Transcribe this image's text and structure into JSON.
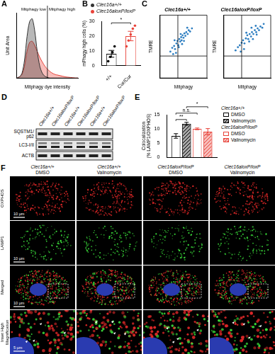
{
  "chart_data": [
    {
      "panel": "A",
      "type": "line",
      "x_label": "Mitphagy dye intensity",
      "y_label": "Unit Area",
      "x": [
        0,
        0.25,
        0.5,
        0.75,
        1,
        1.25,
        1.5,
        1.75,
        2,
        2.25,
        2.5,
        2.75,
        3,
        3.25,
        3.5,
        3.75,
        4,
        4.25,
        4.5,
        4.75,
        5,
        5.25,
        5.5,
        5.75,
        6
      ],
      "series": [
        {
          "name": "Clec16a+/+",
          "color": "#333333",
          "values": [
            0,
            0.02,
            0.08,
            0.3,
            0.7,
            0.95,
            1.0,
            0.8,
            0.45,
            0.2,
            0.08,
            0.03,
            0.01,
            0,
            0,
            0,
            0,
            0,
            0,
            0,
            0,
            0,
            0,
            0,
            0
          ]
        },
        {
          "name": "Clec16aloxP/loxP",
          "color": "#e8433a",
          "values": [
            0,
            0.02,
            0.06,
            0.2,
            0.45,
            0.6,
            0.62,
            0.55,
            0.45,
            0.35,
            0.27,
            0.2,
            0.15,
            0.11,
            0.08,
            0.06,
            0.05,
            0.04,
            0.03,
            0.02,
            0.015,
            0.01,
            0.005,
            0,
            0
          ]
        }
      ],
      "xlim": [
        0,
        6
      ],
      "ylim": [
        0,
        1.1
      ],
      "tick_labels": false,
      "grid": false,
      "threshold": 3,
      "annotations": [
        "Mitphagy low",
        "Mitphagy high"
      ]
    },
    {
      "panel": "B",
      "type": "bar",
      "y_label": "mPhagy high cells (%)",
      "categories": [
        "+/+",
        "Cur/Cur"
      ],
      "values": [
        8,
        20
      ],
      "errors": [
        2.3,
        3.2
      ],
      "points": [
        [
          3,
          6,
          9,
          13
        ],
        [
          13,
          17,
          21,
          25,
          27
        ]
      ],
      "colors": [
        "#000000",
        "#e8433a"
      ],
      "ylim": [
        0,
        30
      ],
      "yticks": [
        0,
        10,
        20,
        30
      ],
      "grid": false,
      "annotations": [
        {
          "text": "*",
          "between": [
            0,
            1
          ]
        }
      ]
    },
    {
      "panel": "C",
      "type": "scatter",
      "title": "Clec16a+/+",
      "x_label": "Mitphagy",
      "y_label": "TMRE",
      "color": "#2f7fc1",
      "x": [
        2.2,
        2.6,
        3,
        3.2,
        3.5,
        3.7,
        3.9,
        4.1,
        4.3,
        4.5,
        4.6,
        4.8,
        5,
        5.2,
        5.4,
        5.6,
        5.9,
        6.1,
        6.4,
        6.8,
        3.4,
        4,
        4.7,
        2.8,
        5.1,
        3.1,
        4.4,
        5.8
      ],
      "values": [
        4.2,
        4.8,
        5.1,
        4.6,
        5.5,
        5.9,
        5.2,
        6.2,
        5.8,
        6.5,
        6,
        6.8,
        6.4,
        7.1,
        6.7,
        7.3,
        7,
        7.6,
        7.4,
        7.9,
        4,
        4.9,
        5.4,
        3.8,
        5.9,
        6,
        7,
        8
      ],
      "xlim": [
        0,
        10
      ],
      "ylim": [
        0,
        10
      ],
      "tick_labels": false,
      "grid": false,
      "x_threshold": 3.8,
      "y_threshold": 3.5
    },
    {
      "type": "scatter",
      "title": "Clec16aloxP/loxP",
      "x_label": "Mitphagy",
      "y_label": "TMRE",
      "color": "#2f7fc1",
      "x": [
        2.5,
        3,
        3.4,
        3.8,
        4.1,
        4.4,
        4.7,
        5,
        5.2,
        5.5,
        5.8,
        6,
        6.3,
        6.6,
        6.9,
        7.2,
        7.5,
        7.8,
        8.2,
        4.3,
        5.4,
        6.2,
        3.6,
        6.8,
        4.8,
        7,
        5.9,
        8.5
      ],
      "values": [
        4.4,
        4.9,
        5.2,
        5.6,
        6,
        5.5,
        6.3,
        6.8,
        6.2,
        7,
        6.6,
        7.3,
        7,
        7.6,
        7.3,
        7.9,
        7.6,
        8.2,
        8,
        4.6,
        5.8,
        6.2,
        4.2,
        8.3,
        7.2,
        6.9,
        8,
        8.6
      ],
      "xlim": [
        0,
        10
      ],
      "ylim": [
        0,
        10
      ],
      "tick_labels": false,
      "grid": false,
      "x_threshold": 3.8,
      "y_threshold": 3.5
    },
    {
      "panel": "E",
      "type": "bar",
      "y_label": [
        "Colocalization",
        "(% LAMP1/OXPHOS)"
      ],
      "categories": [
        null
      ],
      "series": [
        {
          "name": "DMSO",
          "legend_group": "Clec16a+/+",
          "color": "#000000",
          "line_style": "solid",
          "values": [
            7.5
          ],
          "errors": [
            0.8
          ]
        },
        {
          "name": "Valinomycin",
          "legend_group": "Clec16a+/+",
          "color": "#000000",
          "line_style": "hatched",
          "values": [
            11.8
          ],
          "errors": [
            0.5
          ]
        },
        {
          "name": "DMSO",
          "legend_group": "Clec16aloxP/loxP",
          "color": "#e8433a",
          "line_style": "solid",
          "values": [
            10
          ],
          "errors": [
            0.3
          ]
        },
        {
          "name": "Valinomycin",
          "legend_group": "Clec16aloxP/loxP",
          "color": "#e8433a",
          "line_style": "hatched",
          "values": [
            9
          ],
          "errors": [
            1.1
          ]
        }
      ],
      "ylim": [
        0,
        15
      ],
      "yticks": [
        0,
        5,
        10,
        15
      ],
      "grid": false,
      "tick_labels": "y",
      "annotations": [
        {
          "text": "**",
          "between": [
            0,
            1
          ]
        },
        {
          "text": "n.s.",
          "between": [
            0,
            2
          ]
        },
        {
          "text": "*",
          "between": [
            1,
            3
          ]
        }
      ]
    }
  ],
  "blot": {
    "panel": "D",
    "lanes": [
      "Clec16a+/+",
      "Clec16aloxP/loxP",
      "Clec16a+/+",
      "Clec16aloxP/loxP",
      "Clec16a+/+",
      "Clec16aloxP/loxP"
    ],
    "rows": [
      [
        "SQSTM1/",
        "p62"
      ],
      [
        "LC3-I/II"
      ],
      [
        "ACTB"
      ]
    ]
  },
  "micrographs": {
    "panel": "F",
    "columns": [
      {
        "genotype": "Clec16a+/+",
        "treatment": "DMSO"
      },
      {
        "genotype": "Clec16a+/+",
        "treatment": "Valinomycin"
      },
      {
        "genotype": "Clec16aloxP/loxP",
        "treatment": "DMSO"
      },
      {
        "genotype": "Clec16aloxP/loxP",
        "treatment": "Valinomycin"
      }
    ],
    "rows": [
      {
        "label": "OXPHOS",
        "scale_bar": "10 µm"
      },
      {
        "label": "LAMP1",
        "scale_bar": "10 µm"
      },
      {
        "label": "Merged",
        "scale_bar": "10 µm"
      },
      {
        "label": "Inset High Magnification",
        "scale_bar": "5 µm"
      }
    ]
  }
}
